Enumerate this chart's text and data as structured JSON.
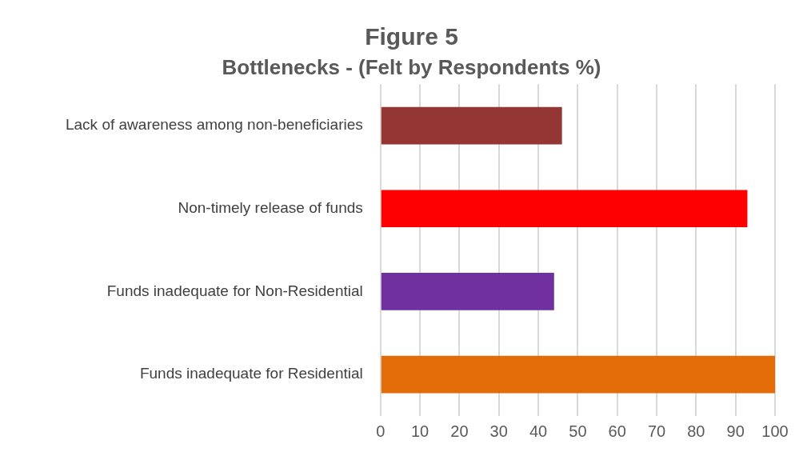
{
  "chart_data": {
    "type": "bar",
    "orientation": "horizontal",
    "title": "Figure 5",
    "subtitle": "Bottlenecks - (Felt by Respondents %)",
    "categories": [
      "Lack of awareness among non-beneficiaries",
      "Non-timely release of funds",
      "Funds inadequate for Non-Residential",
      "Funds inadequate for Residential"
    ],
    "values": [
      46,
      93,
      44,
      100
    ],
    "colors": [
      "#943634",
      "#ff0000",
      "#7030a0",
      "#e36c09"
    ],
    "xlim": [
      0,
      100
    ],
    "xticks": [
      0,
      10,
      20,
      30,
      40,
      50,
      60,
      70,
      80,
      90,
      100
    ],
    "grid": "x",
    "legend": false
  }
}
